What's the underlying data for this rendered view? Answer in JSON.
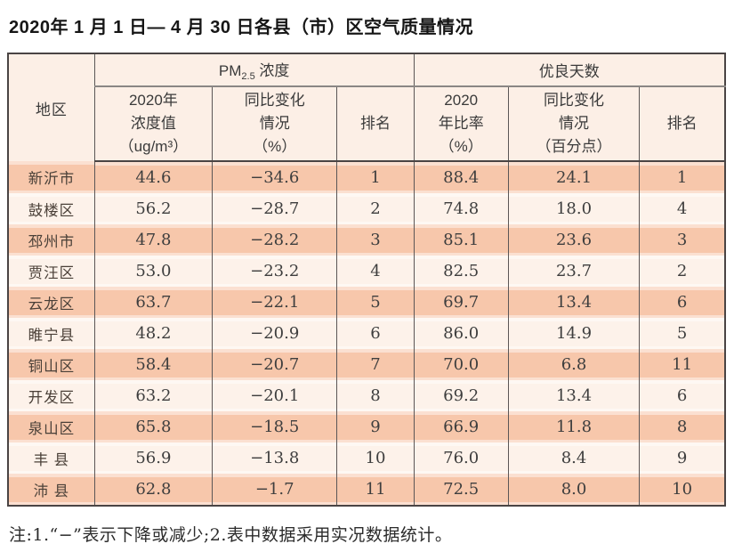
{
  "title": "2020年 1 月 1 日— 4 月 30 日各县（市）区空气质量情况",
  "note": "注:1.“−”表示下降或减少;2.表中数据采用实况数据统计。",
  "colors": {
    "row_odd": "#f7c7ab",
    "row_even": "#fdf2ea",
    "header_bg": "#fcefe6",
    "outer_border": "#4a4444",
    "inner_border": "#5b5656",
    "text": "#3e3e3e"
  },
  "table": {
    "region_header": "地区",
    "pm25_group": {
      "prefix": "PM",
      "sub": "2.5",
      "suffix": " 浓度"
    },
    "days_group_label": "优良天数",
    "subheaders": {
      "pm_value": "2020年\n浓度值\n（ug/m³）",
      "pm_change": "同比变化\n情况\n（%）",
      "pm_rank": "排名",
      "days_rate": "2020\n年比率\n（%）",
      "days_change": "同比变化\n情况\n（百分点）",
      "days_rank": "排名"
    },
    "rows": [
      {
        "region": "新沂市",
        "pm_value": "44.6",
        "pm_change": "−34.6",
        "pm_rank": "1",
        "days_rate": "88.4",
        "days_change": "24.1",
        "days_rank": "1"
      },
      {
        "region": "鼓楼区",
        "pm_value": "56.2",
        "pm_change": "−28.7",
        "pm_rank": "2",
        "days_rate": "74.8",
        "days_change": "18.0",
        "days_rank": "4"
      },
      {
        "region": "邳州市",
        "pm_value": "47.8",
        "pm_change": "−28.2",
        "pm_rank": "3",
        "days_rate": "85.1",
        "days_change": "23.6",
        "days_rank": "3"
      },
      {
        "region": "贾汪区",
        "pm_value": "53.0",
        "pm_change": "−23.2",
        "pm_rank": "4",
        "days_rate": "82.5",
        "days_change": "23.7",
        "days_rank": "2"
      },
      {
        "region": "云龙区",
        "pm_value": "63.7",
        "pm_change": "−22.1",
        "pm_rank": "5",
        "days_rate": "69.7",
        "days_change": "13.4",
        "days_rank": "6"
      },
      {
        "region": "睢宁县",
        "pm_value": "48.2",
        "pm_change": "−20.9",
        "pm_rank": "6",
        "days_rate": "86.0",
        "days_change": "14.9",
        "days_rank": "5"
      },
      {
        "region": "铜山区",
        "pm_value": "58.4",
        "pm_change": "−20.7",
        "pm_rank": "7",
        "days_rate": "70.0",
        "days_change": "6.8",
        "days_rank": "11"
      },
      {
        "region": "开发区",
        "pm_value": "63.2",
        "pm_change": "−20.1",
        "pm_rank": "8",
        "days_rate": "69.2",
        "days_change": "13.4",
        "days_rank": "6"
      },
      {
        "region": "泉山区",
        "pm_value": "65.8",
        "pm_change": "−18.5",
        "pm_rank": "9",
        "days_rate": "66.9",
        "days_change": "11.8",
        "days_rank": "8"
      },
      {
        "region": "丰 县",
        "pm_value": "56.9",
        "pm_change": "−13.8",
        "pm_rank": "10",
        "days_rate": "76.0",
        "days_change": "8.4",
        "days_rank": "9"
      },
      {
        "region": "沛 县",
        "pm_value": "62.8",
        "pm_change": "−1.7",
        "pm_rank": "11",
        "days_rate": "72.5",
        "days_change": "8.0",
        "days_rank": "10"
      }
    ]
  }
}
